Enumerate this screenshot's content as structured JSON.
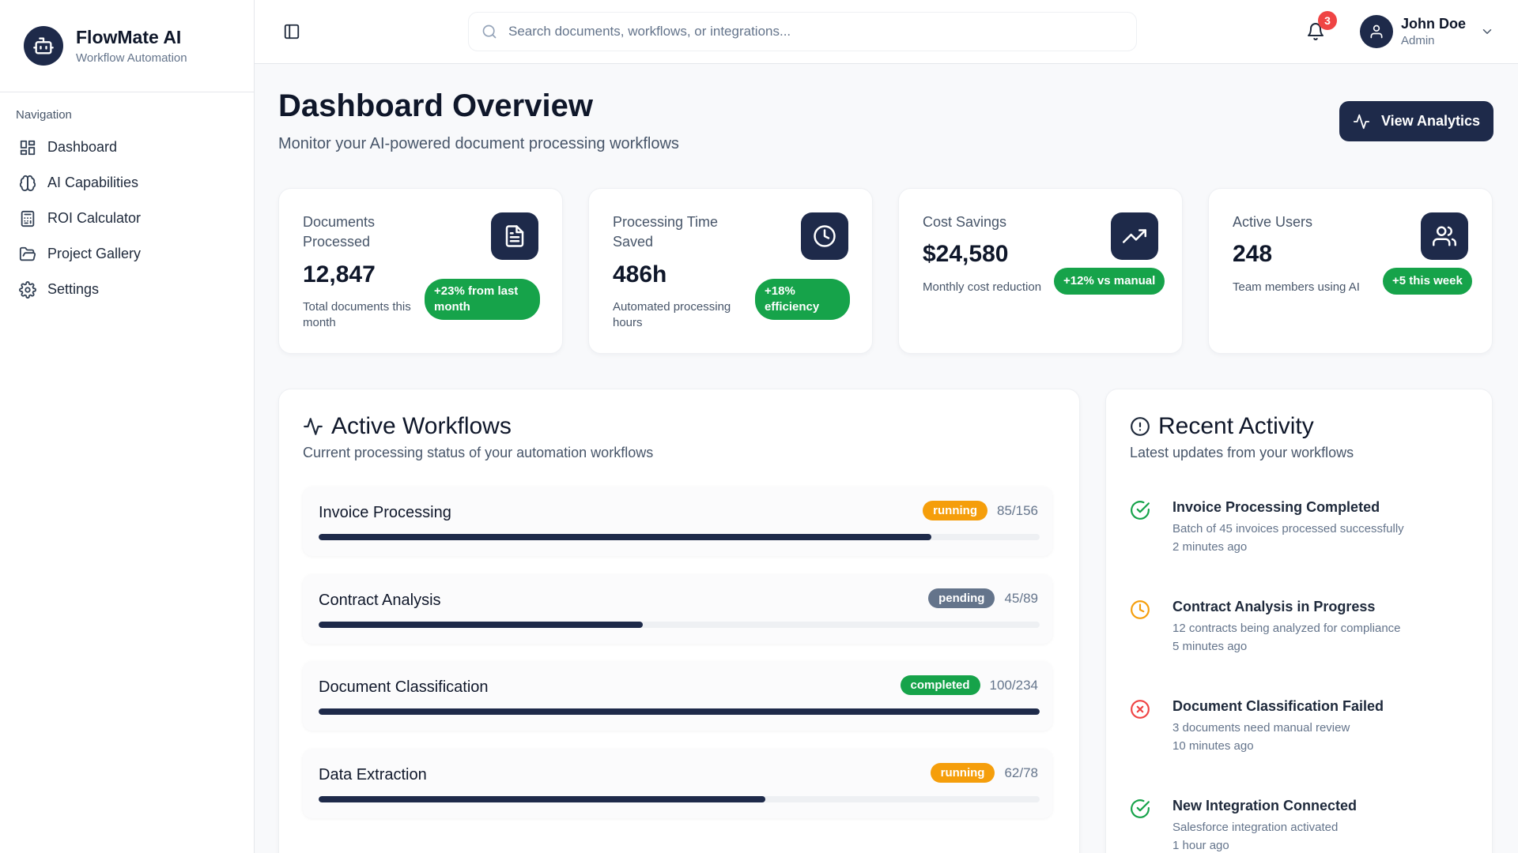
{
  "brand": {
    "name": "FlowMate AI",
    "subtitle": "Workflow Automation"
  },
  "sidebar": {
    "heading": "Navigation",
    "items": [
      {
        "label": "Dashboard",
        "icon": "grid-icon"
      },
      {
        "label": "AI Capabilities",
        "icon": "brain-icon"
      },
      {
        "label": "ROI Calculator",
        "icon": "calculator-icon"
      },
      {
        "label": "Project Gallery",
        "icon": "folder-icon"
      },
      {
        "label": "Settings",
        "icon": "gear-icon"
      }
    ]
  },
  "topbar": {
    "search_placeholder": "Search documents, workflows, or integrations...",
    "notification_count": "3",
    "user": {
      "name": "John Doe",
      "role": "Admin"
    }
  },
  "header": {
    "title": "Dashboard Overview",
    "subtitle": "Monitor your AI-powered document processing workflows",
    "analytics_button": "View Analytics"
  },
  "stats": [
    {
      "label": "Documents Processed",
      "value": "12,847",
      "description": "Total documents this month",
      "change": "+23% from last month",
      "icon": "document-icon"
    },
    {
      "label": "Processing Time Saved",
      "value": "486h",
      "description": "Automated processing hours",
      "change": "+18% efficiency",
      "icon": "clock-icon"
    },
    {
      "label": "Cost Savings",
      "value": "$24,580",
      "description": "Monthly cost reduction",
      "change": "+12% vs manual",
      "icon": "trending-up-icon"
    },
    {
      "label": "Active Users",
      "value": "248",
      "description": "Team members using AI",
      "change": "+5 this week",
      "icon": "users-icon"
    }
  ],
  "workflows": {
    "title": "Active Workflows",
    "subtitle": "Current processing status of your automation workflows",
    "items": [
      {
        "name": "Invoice Processing",
        "status": "running",
        "count": "85/156",
        "progress": 0.85
      },
      {
        "name": "Contract Analysis",
        "status": "pending",
        "count": "45/89",
        "progress": 0.45
      },
      {
        "name": "Document Classification",
        "status": "completed",
        "count": "100/234",
        "progress": 1.0
      },
      {
        "name": "Data Extraction",
        "status": "running",
        "count": "62/78",
        "progress": 0.62
      }
    ]
  },
  "activity": {
    "title": "Recent Activity",
    "subtitle": "Latest updates from your workflows",
    "items": [
      {
        "title": "Invoice Processing Completed",
        "description": "Batch of 45 invoices processed successfully",
        "time": "2 minutes ago",
        "status": "success"
      },
      {
        "title": "Contract Analysis in Progress",
        "description": "12 contracts being analyzed for compliance",
        "time": "5 minutes ago",
        "status": "in-progress"
      },
      {
        "title": "Document Classification Failed",
        "description": "3 documents need manual review",
        "time": "10 minutes ago",
        "status": "error"
      },
      {
        "title": "New Integration Connected",
        "description": "Salesforce integration activated",
        "time": "1 hour ago",
        "status": "success"
      }
    ]
  },
  "colors": {
    "primary": "#1e2a4a",
    "success": "#16a34a",
    "running": "#f59e0b",
    "pending": "#64748b",
    "error": "#ef4444",
    "notification": "#ef4444"
  }
}
